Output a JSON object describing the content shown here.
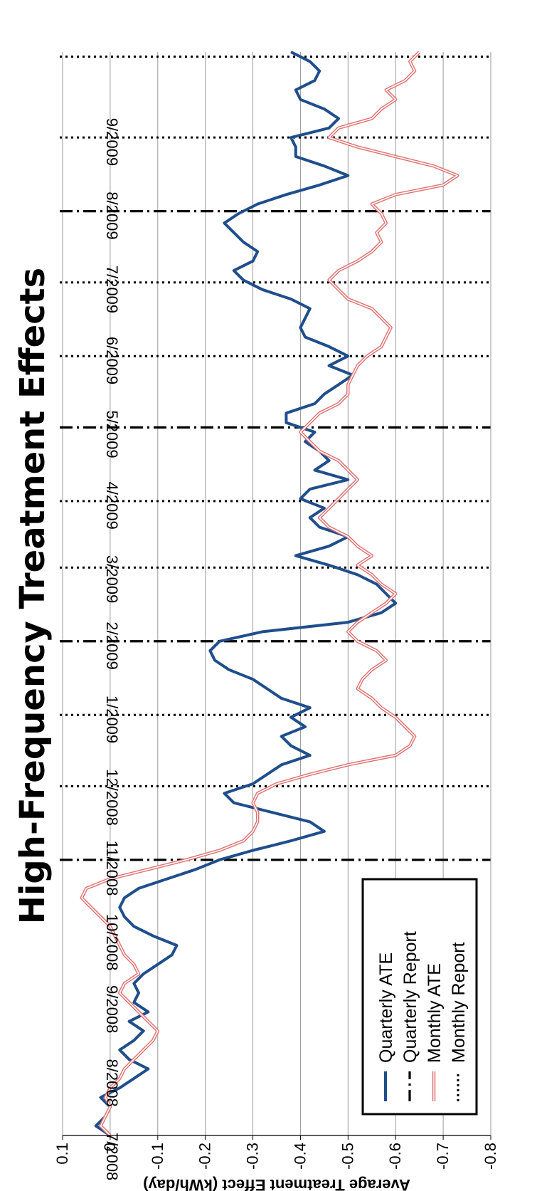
{
  "chart_data": {
    "type": "line",
    "title": "High-Frequency Treatment Effects",
    "ylabel": "Average Treatment Effect (kWh/day)",
    "ylim": [
      -0.8,
      0.1
    ],
    "yticks": [
      "0.1",
      "0",
      "-0.1",
      "-0.2",
      "-0.3",
      "-0.4",
      "-0.5",
      "-0.6",
      "-0.7",
      "-0.8"
    ],
    "ytick_values": [
      0.1,
      0,
      -0.1,
      -0.2,
      -0.3,
      -0.4,
      -0.5,
      -0.6,
      -0.7,
      -0.8
    ],
    "xlim": [
      "2008-07-01",
      "2009-09-30"
    ],
    "date_labels": [
      {
        "date": "2008-07-01",
        "label": "7/2008"
      },
      {
        "date": "2008-08-01",
        "label": "8/2008"
      },
      {
        "date": "2008-09-01",
        "label": "9/2008"
      },
      {
        "date": "2008-10-01",
        "label": "10/2008"
      },
      {
        "date": "2008-11-01",
        "label": "11/2008"
      },
      {
        "date": "2008-12-01",
        "label": "12/2008"
      },
      {
        "date": "2009-01-01",
        "label": "1/2009"
      },
      {
        "date": "2009-02-01",
        "label": "2/2009"
      },
      {
        "date": "2009-03-01",
        "label": "3/2009"
      },
      {
        "date": "2009-04-01",
        "label": "4/2009"
      },
      {
        "date": "2009-05-01",
        "label": "5/2009"
      },
      {
        "date": "2009-06-01",
        "label": "6/2009"
      },
      {
        "date": "2009-07-01",
        "label": "7/2009"
      },
      {
        "date": "2009-08-01",
        "label": "8/2009"
      },
      {
        "date": "2009-09-01",
        "label": "9/2009"
      }
    ],
    "quarterly_reports": [
      "2008-10-25",
      "2009-01-25",
      "2009-04-25",
      "2009-07-25"
    ],
    "monthly_reports": [
      "2008-11-25",
      "2008-12-25",
      "2009-02-25",
      "2009-03-25",
      "2009-05-25",
      "2009-06-25",
      "2009-08-25",
      "2009-09-28"
    ],
    "series": [
      {
        "name": "Quarterly ATE",
        "color": "#1f4e8c",
        "x": [
          "2008-07-01",
          "2008-07-05",
          "2008-07-09",
          "2008-07-13",
          "2008-07-17",
          "2008-07-21",
          "2008-07-25",
          "2008-07-29",
          "2008-08-02",
          "2008-08-06",
          "2008-08-10",
          "2008-08-14",
          "2008-08-18",
          "2008-08-22",
          "2008-08-26",
          "2008-08-30",
          "2008-09-03",
          "2008-09-07",
          "2008-09-11",
          "2008-09-15",
          "2008-09-19",
          "2008-09-23",
          "2008-09-27",
          "2008-10-01",
          "2008-10-05",
          "2008-10-09",
          "2008-10-13",
          "2008-10-17",
          "2008-10-21",
          "2008-10-25",
          "2008-10-29",
          "2008-11-02",
          "2008-11-06",
          "2008-11-10",
          "2008-11-14",
          "2008-11-18",
          "2008-11-22",
          "2008-11-26",
          "2008-11-30",
          "2008-12-04",
          "2008-12-08",
          "2008-12-12",
          "2008-12-16",
          "2008-12-20",
          "2008-12-24",
          "2008-12-28",
          "2009-01-01",
          "2009-01-05",
          "2009-01-09",
          "2009-01-13",
          "2009-01-17",
          "2009-01-21",
          "2009-01-25",
          "2009-01-29",
          "2009-02-02",
          "2009-02-06",
          "2009-02-10",
          "2009-02-14",
          "2009-02-18",
          "2009-02-22",
          "2009-02-26",
          "2009-03-02",
          "2009-03-06",
          "2009-03-10",
          "2009-03-14",
          "2009-03-18",
          "2009-03-22",
          "2009-03-26",
          "2009-03-30",
          "2009-04-03",
          "2009-04-07",
          "2009-04-11",
          "2009-04-15",
          "2009-04-19",
          "2009-04-23",
          "2009-04-27",
          "2009-05-01",
          "2009-05-05",
          "2009-05-09",
          "2009-05-13",
          "2009-05-17",
          "2009-05-21",
          "2009-05-25",
          "2009-05-29",
          "2009-06-02",
          "2009-06-06",
          "2009-06-10",
          "2009-06-14",
          "2009-06-18",
          "2009-06-22",
          "2009-06-26",
          "2009-06-30",
          "2009-07-04",
          "2009-07-08",
          "2009-07-12",
          "2009-07-16",
          "2009-07-20",
          "2009-07-24",
          "2009-07-28",
          "2009-08-01",
          "2009-08-05",
          "2009-08-09",
          "2009-08-13",
          "2009-08-17",
          "2009-08-21",
          "2009-08-25",
          "2009-08-29",
          "2009-09-02",
          "2009-09-06",
          "2009-09-10",
          "2009-09-14",
          "2009-09-18",
          "2009-09-22",
          "2009-09-26",
          "2009-09-30"
        ],
        "y": [
          0.0,
          0.03,
          0.01,
          0.0,
          0.02,
          -0.02,
          -0.05,
          -0.08,
          -0.04,
          -0.02,
          -0.05,
          -0.07,
          -0.04,
          -0.08,
          -0.05,
          -0.06,
          -0.05,
          -0.07,
          -0.1,
          -0.13,
          -0.14,
          -0.09,
          -0.05,
          -0.03,
          -0.02,
          -0.03,
          -0.06,
          -0.12,
          -0.18,
          -0.23,
          -0.3,
          -0.38,
          -0.45,
          -0.42,
          -0.34,
          -0.26,
          -0.24,
          -0.3,
          -0.33,
          -0.36,
          -0.42,
          -0.38,
          -0.36,
          -0.41,
          -0.38,
          -0.42,
          -0.36,
          -0.33,
          -0.3,
          -0.25,
          -0.22,
          -0.21,
          -0.23,
          -0.32,
          -0.5,
          -0.57,
          -0.6,
          -0.58,
          -0.56,
          -0.52,
          -0.46,
          -0.39,
          -0.46,
          -0.5,
          -0.44,
          -0.42,
          -0.45,
          -0.4,
          -0.42,
          -0.5,
          -0.43,
          -0.46,
          -0.44,
          -0.41,
          -0.43,
          -0.37,
          -0.37,
          -0.43,
          -0.45,
          -0.48,
          -0.51,
          -0.46,
          -0.5,
          -0.46,
          -0.41,
          -0.4,
          -0.41,
          -0.42,
          -0.38,
          -0.32,
          -0.28,
          -0.26,
          -0.3,
          -0.31,
          -0.28,
          -0.26,
          -0.24,
          -0.27,
          -0.31,
          -0.37,
          -0.44,
          -0.5,
          -0.45,
          -0.39,
          -0.39,
          -0.38,
          -0.46,
          -0.48,
          -0.45,
          -0.4,
          -0.39,
          -0.43,
          -0.44,
          -0.42,
          -0.38
        ]
      },
      {
        "name": "Quarterly Report",
        "color": "#000000",
        "style": "dash-dot"
      },
      {
        "name": "Monthly ATE",
        "color": "#e07272",
        "x": [
          "2008-07-01",
          "2008-07-05",
          "2008-07-09",
          "2008-07-13",
          "2008-07-17",
          "2008-07-21",
          "2008-07-25",
          "2008-07-29",
          "2008-08-02",
          "2008-08-06",
          "2008-08-10",
          "2008-08-14",
          "2008-08-18",
          "2008-08-22",
          "2008-08-26",
          "2008-08-30",
          "2008-09-03",
          "2008-09-07",
          "2008-09-11",
          "2008-09-15",
          "2008-09-19",
          "2008-09-23",
          "2008-09-27",
          "2008-10-01",
          "2008-10-05",
          "2008-10-09",
          "2008-10-13",
          "2008-10-17",
          "2008-10-21",
          "2008-10-25",
          "2008-10-29",
          "2008-11-02",
          "2008-11-06",
          "2008-11-10",
          "2008-11-14",
          "2008-11-18",
          "2008-11-22",
          "2008-11-26",
          "2008-11-30",
          "2008-12-04",
          "2008-12-08",
          "2008-12-12",
          "2008-12-16",
          "2008-12-20",
          "2008-12-24",
          "2008-12-28",
          "2009-01-01",
          "2009-01-05",
          "2009-01-09",
          "2009-01-13",
          "2009-01-17",
          "2009-01-21",
          "2009-01-25",
          "2009-01-29",
          "2009-02-02",
          "2009-02-06",
          "2009-02-10",
          "2009-02-14",
          "2009-02-18",
          "2009-02-22",
          "2009-02-26",
          "2009-03-02",
          "2009-03-06",
          "2009-03-10",
          "2009-03-14",
          "2009-03-18",
          "2009-03-22",
          "2009-03-26",
          "2009-03-30",
          "2009-04-03",
          "2009-04-07",
          "2009-04-11",
          "2009-04-15",
          "2009-04-19",
          "2009-04-23",
          "2009-04-27",
          "2009-05-01",
          "2009-05-05",
          "2009-05-09",
          "2009-05-13",
          "2009-05-17",
          "2009-05-21",
          "2009-05-25",
          "2009-05-29",
          "2009-06-02",
          "2009-06-06",
          "2009-06-10",
          "2009-06-14",
          "2009-06-18",
          "2009-06-22",
          "2009-06-26",
          "2009-06-30",
          "2009-07-04",
          "2009-07-08",
          "2009-07-12",
          "2009-07-16",
          "2009-07-20",
          "2009-07-24",
          "2009-07-28",
          "2009-08-01",
          "2009-08-05",
          "2009-08-09",
          "2009-08-13",
          "2009-08-17",
          "2009-08-21",
          "2009-08-25",
          "2009-08-29",
          "2009-09-02",
          "2009-09-06",
          "2009-09-10",
          "2009-09-14",
          "2009-09-18",
          "2009-09-22",
          "2009-09-26",
          "2009-09-30"
        ],
        "y": [
          0.0,
          0.02,
          0.01,
          0.0,
          0.01,
          0.0,
          -0.02,
          -0.03,
          -0.05,
          -0.07,
          -0.09,
          -0.1,
          -0.08,
          -0.06,
          -0.04,
          -0.02,
          -0.03,
          -0.06,
          -0.05,
          -0.03,
          -0.02,
          -0.01,
          0.0,
          0.02,
          0.04,
          0.06,
          0.05,
          0.0,
          -0.08,
          -0.16,
          -0.23,
          -0.28,
          -0.3,
          -0.31,
          -0.31,
          -0.3,
          -0.31,
          -0.35,
          -0.42,
          -0.5,
          -0.6,
          -0.63,
          -0.64,
          -0.62,
          -0.6,
          -0.57,
          -0.55,
          -0.52,
          -0.53,
          -0.55,
          -0.58,
          -0.56,
          -0.52,
          -0.5,
          -0.52,
          -0.55,
          -0.58,
          -0.6,
          -0.57,
          -0.55,
          -0.52,
          -0.55,
          -0.52,
          -0.5,
          -0.46,
          -0.44,
          -0.46,
          -0.48,
          -0.5,
          -0.52,
          -0.5,
          -0.48,
          -0.44,
          -0.42,
          -0.4,
          -0.42,
          -0.44,
          -0.48,
          -0.5,
          -0.5,
          -0.51,
          -0.52,
          -0.54,
          -0.57,
          -0.58,
          -0.59,
          -0.57,
          -0.55,
          -0.5,
          -0.48,
          -0.46,
          -0.48,
          -0.52,
          -0.55,
          -0.57,
          -0.56,
          -0.58,
          -0.57,
          -0.55,
          -0.6,
          -0.7,
          -0.73,
          -0.68,
          -0.6,
          -0.52,
          -0.46,
          -0.48,
          -0.55,
          -0.57,
          -0.6,
          -0.58,
          -0.62,
          -0.64,
          -0.63,
          -0.65
        ]
      },
      {
        "name": "Monthly Report",
        "color": "#000000",
        "style": "dotted"
      }
    ],
    "legend": {
      "position": "bottom-right",
      "entries": [
        "Quarterly ATE",
        "Quarterly Report",
        "Monthly ATE",
        "Monthly Report"
      ]
    },
    "grid": true
  }
}
